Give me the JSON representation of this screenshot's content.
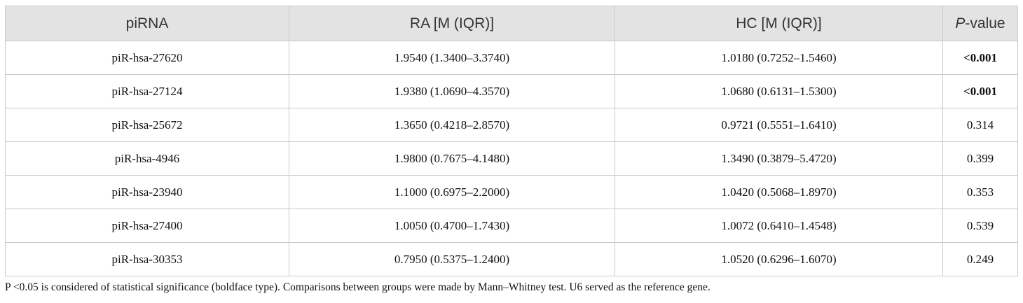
{
  "table": {
    "header": [
      "piRNA",
      "RA [M (IQR)]",
      "HC [M (IQR)]",
      {
        "italic": "P",
        "rest": "-value"
      }
    ],
    "rows": [
      [
        "piR-hsa-27620",
        "1.9540 (1.3400–3.3740)",
        "1.0180 (0.7252–1.5460)",
        "<0.001"
      ],
      [
        "piR-hsa-27124",
        "1.9380 (1.0690–4.3570)",
        "1.0680 (0.6131–1.5300)",
        "<0.001"
      ],
      [
        "piR-hsa-25672",
        "1.3650 (0.4218–2.8570)",
        "0.9721 (0.5551–1.6410)",
        "0.314"
      ],
      [
        "piR-hsa-4946",
        "1.9800 (0.7675–4.1480)",
        "1.3490 (0.3879–5.4720)",
        "0.399"
      ],
      [
        "piR-hsa-23940",
        "1.1000 (0.6975–2.2000)",
        "1.0420 (0.5068–1.8970)",
        "0.353"
      ],
      [
        "piR-hsa-27400",
        "1.0050 (0.4700–1.7430)",
        "1.0072 (0.6410–1.4548)",
        "0.539"
      ],
      [
        "piR-hsa-30353",
        "0.7950 (0.5375–1.2400)",
        "1.0520 (0.6296–1.6070)",
        "0.249"
      ]
    ],
    "bold_rows": [
      0,
      1
    ]
  },
  "footnote": "P <0.05 is considered of statistical significance (boldface type). Comparisons between groups were made by Mann–Whitney test. U6 served as the reference gene."
}
